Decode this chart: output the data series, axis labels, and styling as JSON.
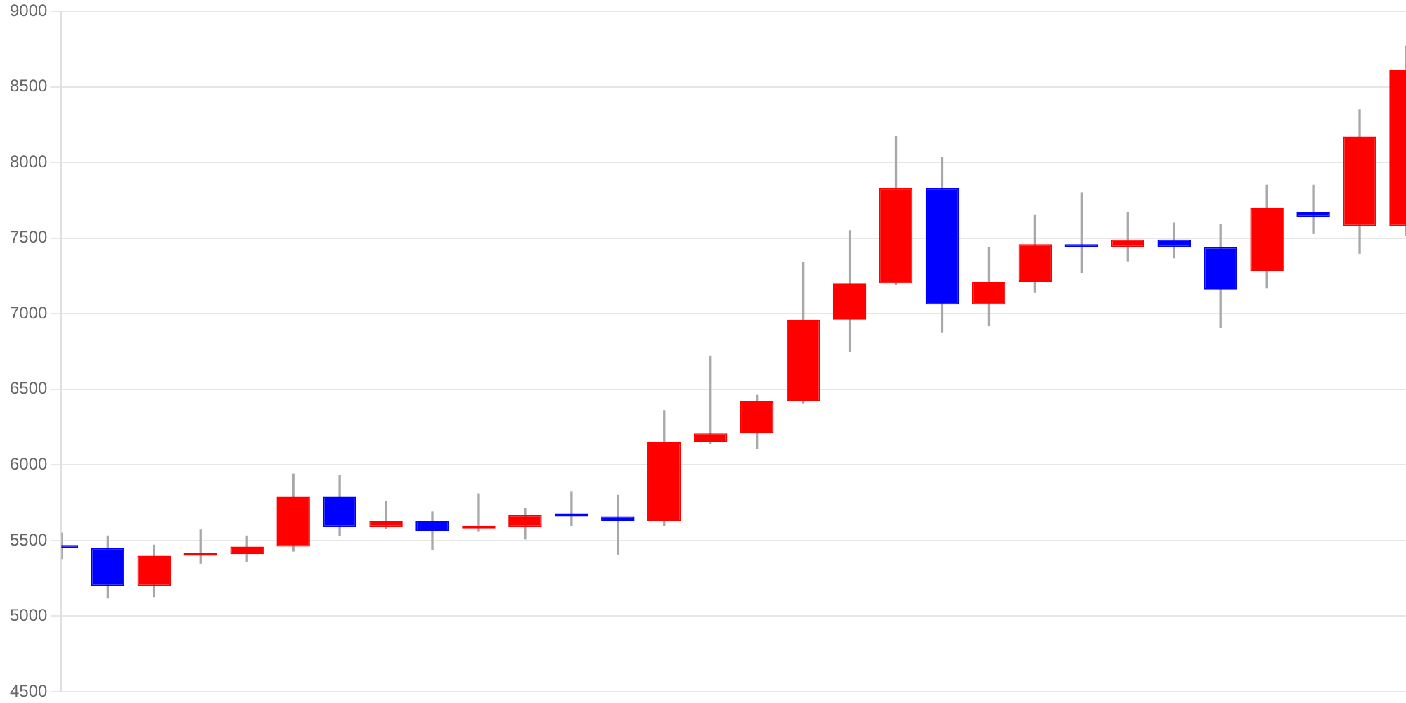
{
  "chart_data": {
    "type": "candlestick",
    "categories": [
      null,
      null,
      null,
      null,
      null,
      null,
      null,
      null,
      null,
      null,
      null,
      null,
      null,
      null,
      null,
      null,
      null,
      null,
      null,
      null,
      null,
      null,
      null,
      null,
      null,
      null,
      null,
      null,
      null,
      null
    ],
    "ohlc": [
      [
        5470,
        5550,
        5380,
        5450
      ],
      [
        5450,
        5530,
        5120,
        5200
      ],
      [
        5200,
        5470,
        5130,
        5400
      ],
      [
        5400,
        5570,
        5350,
        5410
      ],
      [
        5410,
        5530,
        5360,
        5460
      ],
      [
        5460,
        5940,
        5430,
        5790
      ],
      [
        5790,
        5930,
        5530,
        5590
      ],
      [
        5590,
        5760,
        5580,
        5630
      ],
      [
        5630,
        5690,
        5440,
        5560
      ],
      [
        5580,
        5810,
        5560,
        5590
      ],
      [
        5590,
        5710,
        5510,
        5670
      ],
      [
        5670,
        5820,
        5600,
        5660
      ],
      [
        5660,
        5800,
        5410,
        5630
      ],
      [
        5630,
        6360,
        5600,
        6150
      ],
      [
        6150,
        6720,
        6140,
        6210
      ],
      [
        6210,
        6460,
        6110,
        6420
      ],
      [
        6420,
        7340,
        6410,
        6960
      ],
      [
        6960,
        7550,
        6750,
        7200
      ],
      [
        7200,
        8170,
        7190,
        7830
      ],
      [
        7830,
        8030,
        6880,
        7060
      ],
      [
        7060,
        7440,
        6920,
        7210
      ],
      [
        7210,
        7650,
        7140,
        7460
      ],
      [
        7460,
        7800,
        7270,
        7440
      ],
      [
        7440,
        7670,
        7350,
        7490
      ],
      [
        7490,
        7600,
        7370,
        7440
      ],
      [
        7440,
        7590,
        6910,
        7160
      ],
      [
        7280,
        7850,
        7170,
        7700
      ],
      [
        7670,
        7850,
        7530,
        7640
      ],
      [
        7580,
        8350,
        7400,
        8170
      ],
      [
        7580,
        8770,
        7520,
        8610
      ]
    ],
    "colors": [
      "#0000ff",
      "#0000ff",
      "#ff0000",
      "#ff0000",
      "#ff0000",
      "#ff0000",
      "#0000ff",
      "#ff0000",
      "#0000ff",
      "#ff0000",
      "#ff0000",
      "#0000ff",
      "#0000ff",
      "#ff0000",
      "#ff0000",
      "#ff0000",
      "#ff0000",
      "#ff0000",
      "#ff0000",
      "#0000ff",
      "#ff0000",
      "#ff0000",
      "#0000ff",
      "#ff0000",
      "#0000ff",
      "#0000ff",
      "#ff0000",
      "#0000ff",
      "#ff0000",
      "#ff0000"
    ],
    "ylim": [
      4500,
      9000
    ],
    "yticks": [
      4500,
      5000,
      5500,
      6000,
      6500,
      7000,
      7500,
      8000,
      8500,
      9000
    ],
    "grid": "y",
    "tick_labels": "y"
  }
}
